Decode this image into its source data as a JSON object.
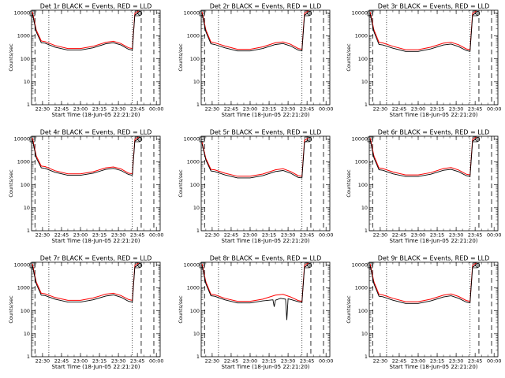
{
  "colors": {
    "events": "#000000",
    "lld": "#ff0000",
    "background": "#ffffff"
  },
  "common": {
    "ylabel": "Counts/sec",
    "xlabel": "Start Time (18-Jun-05 22:21:20)",
    "y_ticks": [
      "1",
      "10",
      "100",
      "1000",
      "10000"
    ],
    "x_ticks": [
      "22:30",
      "22:45",
      "23:00",
      "23:15",
      "23:30",
      "23:45",
      "00:00"
    ]
  },
  "chart_data": [
    {
      "title": "Det 1r BLACK = Events, RED = LLD",
      "type": "line",
      "ylim": [
        1,
        13000
      ],
      "yscale": "log",
      "x_range": [
        "22:21:20",
        "00:03:00"
      ],
      "series": [
        {
          "name": "Events",
          "color": "#000000",
          "x": [
            "22:22",
            "22:25",
            "22:29",
            "22:32",
            "22:40",
            "22:50",
            "23:00",
            "23:10",
            "23:20",
            "23:26",
            "23:32",
            "23:38",
            "23:41",
            "23:43",
            "23:46"
          ],
          "y": [
            9000,
            1500,
            500,
            480,
            320,
            240,
            240,
            300,
            450,
            500,
            400,
            260,
            240,
            8000,
            10000
          ]
        },
        {
          "name": "LLD",
          "color": "#ff0000",
          "x": [
            "22:22",
            "22:25",
            "22:29",
            "22:32",
            "22:40",
            "22:50",
            "23:00",
            "23:10",
            "23:20",
            "23:26",
            "23:32",
            "23:38",
            "23:41",
            "23:43",
            "23:46"
          ],
          "y": [
            11000,
            1800,
            600,
            560,
            380,
            280,
            280,
            350,
            520,
            580,
            460,
            300,
            280,
            9500,
            12000
          ]
        }
      ]
    },
    {
      "title": "Det 2r BLACK = Events, RED = LLD",
      "type": "line",
      "ylim": [
        1,
        13000
      ],
      "yscale": "log",
      "x_range": [
        "22:21:20",
        "00:03:00"
      ],
      "series": [
        {
          "name": "Events",
          "color": "#000000",
          "x": [
            "22:22",
            "22:25",
            "22:29",
            "22:32",
            "22:40",
            "22:50",
            "23:00",
            "23:10",
            "23:20",
            "23:26",
            "23:32",
            "23:38",
            "23:41",
            "23:43",
            "23:46"
          ],
          "y": [
            9000,
            1500,
            450,
            420,
            300,
            220,
            220,
            280,
            420,
            460,
            360,
            240,
            220,
            8000,
            10000
          ]
        },
        {
          "name": "LLD",
          "color": "#ff0000",
          "x": [
            "22:22",
            "22:25",
            "22:29",
            "22:32",
            "22:40",
            "22:50",
            "23:00",
            "23:10",
            "23:20",
            "23:26",
            "23:32",
            "23:38",
            "23:41",
            "23:43",
            "23:46"
          ],
          "y": [
            11000,
            1800,
            540,
            500,
            360,
            260,
            260,
            330,
            500,
            540,
            430,
            280,
            260,
            9500,
            12000
          ]
        }
      ]
    },
    {
      "title": "Det 3r BLACK = Events, RED = LLD",
      "type": "line",
      "ylim": [
        1,
        13000
      ],
      "yscale": "log",
      "x_range": [
        "22:21:20",
        "00:03:00"
      ],
      "series": [
        {
          "name": "Events",
          "color": "#000000",
          "x": [
            "22:22",
            "22:25",
            "22:29",
            "22:32",
            "22:40",
            "22:50",
            "23:00",
            "23:10",
            "23:20",
            "23:26",
            "23:32",
            "23:38",
            "23:41",
            "23:43",
            "23:46"
          ],
          "y": [
            9000,
            1500,
            420,
            400,
            290,
            210,
            210,
            270,
            400,
            440,
            340,
            230,
            210,
            8000,
            10000
          ]
        },
        {
          "name": "LLD",
          "color": "#ff0000",
          "x": [
            "22:22",
            "22:25",
            "22:29",
            "22:32",
            "22:40",
            "22:50",
            "23:00",
            "23:10",
            "23:20",
            "23:26",
            "23:32",
            "23:38",
            "23:41",
            "23:43",
            "23:46"
          ],
          "y": [
            11000,
            1800,
            520,
            490,
            350,
            250,
            250,
            320,
            480,
            520,
            410,
            270,
            250,
            9500,
            12000
          ]
        }
      ]
    },
    {
      "title": "Det 4r BLACK = Events, RED = LLD",
      "type": "line",
      "ylim": [
        1,
        13000
      ],
      "yscale": "log",
      "x_range": [
        "22:21:20",
        "00:03:00"
      ],
      "series": [
        {
          "name": "Events",
          "color": "#000000",
          "x": [
            "22:22",
            "22:25",
            "22:29",
            "22:32",
            "22:40",
            "22:50",
            "23:00",
            "23:10",
            "23:20",
            "23:26",
            "23:32",
            "23:38",
            "23:41",
            "23:43",
            "23:46"
          ],
          "y": [
            9000,
            1500,
            550,
            520,
            350,
            260,
            260,
            320,
            470,
            520,
            420,
            280,
            260,
            8000,
            10000
          ]
        },
        {
          "name": "LLD",
          "color": "#ff0000",
          "x": [
            "22:22",
            "22:25",
            "22:29",
            "22:32",
            "22:40",
            "22:50",
            "23:00",
            "23:10",
            "23:20",
            "23:26",
            "23:32",
            "23:38",
            "23:41",
            "23:43",
            "23:46"
          ],
          "y": [
            11000,
            1800,
            650,
            620,
            410,
            300,
            300,
            370,
            550,
            600,
            490,
            320,
            300,
            9500,
            12000
          ]
        }
      ]
    },
    {
      "title": "Det 5r BLACK = Events, RED = LLD",
      "type": "line",
      "ylim": [
        1,
        13000
      ],
      "yscale": "log",
      "x_range": [
        "22:21:20",
        "00:03:00"
      ],
      "series": [
        {
          "name": "Events",
          "color": "#000000",
          "x": [
            "22:22",
            "22:25",
            "22:29",
            "22:32",
            "22:40",
            "22:50",
            "23:00",
            "23:10",
            "23:20",
            "23:26",
            "23:32",
            "23:38",
            "23:41",
            "23:43",
            "23:46"
          ],
          "y": [
            6000,
            1200,
            400,
            380,
            270,
            200,
            200,
            250,
            380,
            420,
            320,
            210,
            200,
            7000,
            9000
          ]
        },
        {
          "name": "LLD",
          "color": "#ff0000",
          "x": [
            "22:22",
            "22:25",
            "22:29",
            "22:32",
            "22:40",
            "22:50",
            "23:00",
            "23:10",
            "23:20",
            "23:26",
            "23:32",
            "23:38",
            "23:41",
            "23:43",
            "23:46"
          ],
          "y": [
            7000,
            1400,
            470,
            450,
            320,
            235,
            235,
            295,
            450,
            500,
            380,
            250,
            235,
            8500,
            11000
          ]
        }
      ]
    },
    {
      "title": "Det 6r BLACK = Events, RED = LLD",
      "type": "line",
      "ylim": [
        1,
        13000
      ],
      "yscale": "log",
      "x_range": [
        "22:21:20",
        "00:03:00"
      ],
      "series": [
        {
          "name": "Events",
          "color": "#000000",
          "x": [
            "22:22",
            "22:25",
            "22:29",
            "22:32",
            "22:40",
            "22:50",
            "23:00",
            "23:10",
            "23:20",
            "23:26",
            "23:32",
            "23:38",
            "23:41",
            "23:43",
            "23:46"
          ],
          "y": [
            9000,
            1500,
            450,
            430,
            300,
            230,
            230,
            290,
            430,
            470,
            370,
            250,
            230,
            8000,
            10000
          ]
        },
        {
          "name": "LLD",
          "color": "#ff0000",
          "x": [
            "22:22",
            "22:25",
            "22:29",
            "22:32",
            "22:40",
            "22:50",
            "23:00",
            "23:10",
            "23:20",
            "23:26",
            "23:32",
            "23:38",
            "23:41",
            "23:43",
            "23:46"
          ],
          "y": [
            11000,
            1800,
            540,
            510,
            360,
            270,
            270,
            340,
            510,
            560,
            440,
            290,
            270,
            9500,
            12000
          ]
        }
      ]
    },
    {
      "title": "Det 7r BLACK = Events, RED = LLD",
      "type": "line",
      "ylim": [
        1,
        13000
      ],
      "yscale": "log",
      "x_range": [
        "22:21:20",
        "00:03:00"
      ],
      "series": [
        {
          "name": "Events",
          "color": "#000000",
          "x": [
            "22:22",
            "22:25",
            "22:29",
            "22:32",
            "22:40",
            "22:50",
            "23:00",
            "23:10",
            "23:20",
            "23:26",
            "23:32",
            "23:38",
            "23:41",
            "23:43",
            "23:46"
          ],
          "y": [
            9000,
            1500,
            480,
            460,
            320,
            240,
            240,
            300,
            440,
            490,
            390,
            260,
            240,
            8000,
            10000
          ]
        },
        {
          "name": "LLD",
          "color": "#ff0000",
          "x": [
            "22:22",
            "22:25",
            "22:29",
            "22:32",
            "22:40",
            "22:50",
            "23:00",
            "23:10",
            "23:20",
            "23:26",
            "23:32",
            "23:38",
            "23:41",
            "23:43",
            "23:46"
          ],
          "y": [
            11000,
            1800,
            580,
            550,
            380,
            285,
            285,
            360,
            530,
            580,
            460,
            310,
            285,
            9500,
            12000
          ]
        }
      ]
    },
    {
      "title": "Det 8r BLACK = Events, RED = LLD",
      "type": "line",
      "ylim": [
        1,
        13000
      ],
      "yscale": "log",
      "x_range": [
        "22:21:20",
        "00:03:00"
      ],
      "series": [
        {
          "name": "Events",
          "color": "#000000",
          "x": [
            "22:22",
            "22:25",
            "22:29",
            "22:32",
            "22:40",
            "22:50",
            "23:00",
            "23:10",
            "23:18",
            "23:19",
            "23:20",
            "23:24",
            "23:28",
            "23:29",
            "23:30",
            "23:33",
            "23:38",
            "23:41",
            "23:43",
            "23:46"
          ],
          "y": [
            9000,
            1500,
            450,
            430,
            300,
            220,
            220,
            270,
            300,
            150,
            290,
            350,
            320,
            40,
            330,
            300,
            250,
            230,
            8000,
            10000
          ]
        },
        {
          "name": "LLD",
          "color": "#ff0000",
          "x": [
            "22:22",
            "22:25",
            "22:29",
            "22:32",
            "22:40",
            "22:50",
            "23:00",
            "23:10",
            "23:20",
            "23:26",
            "23:32",
            "23:38",
            "23:41",
            "23:43",
            "23:46"
          ],
          "y": [
            11000,
            1800,
            520,
            500,
            350,
            260,
            260,
            320,
            480,
            520,
            400,
            280,
            260,
            9500,
            12000
          ]
        }
      ]
    },
    {
      "title": "Det 9r BLACK = Events, RED = LLD",
      "type": "line",
      "ylim": [
        1,
        13000
      ],
      "yscale": "log",
      "x_range": [
        "22:21:20",
        "00:03:00"
      ],
      "series": [
        {
          "name": "Events",
          "color": "#000000",
          "x": [
            "22:22",
            "22:25",
            "22:29",
            "22:32",
            "22:40",
            "22:50",
            "23:00",
            "23:10",
            "23:20",
            "23:26",
            "23:32",
            "23:38",
            "23:41",
            "23:43",
            "23:46"
          ],
          "y": [
            9000,
            1500,
            430,
            410,
            290,
            210,
            210,
            270,
            400,
            450,
            350,
            240,
            220,
            8000,
            10000
          ]
        },
        {
          "name": "LLD",
          "color": "#ff0000",
          "x": [
            "22:22",
            "22:25",
            "22:29",
            "22:32",
            "22:40",
            "22:50",
            "23:00",
            "23:10",
            "23:20",
            "23:26",
            "23:32",
            "23:38",
            "23:41",
            "23:43",
            "23:46"
          ],
          "y": [
            11000,
            1800,
            520,
            490,
            350,
            250,
            250,
            320,
            480,
            540,
            420,
            280,
            260,
            9500,
            12000
          ]
        }
      ]
    }
  ]
}
